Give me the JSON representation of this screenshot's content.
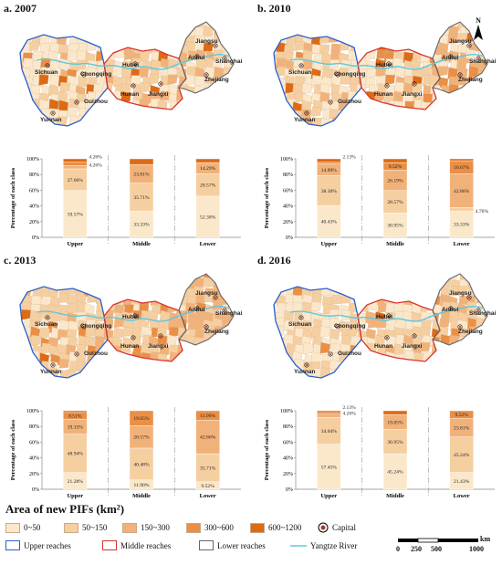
{
  "panels": [
    {
      "id": "a",
      "title": "a. 2007",
      "show_north": false,
      "chart": {
        "type": "bar",
        "stacked": true,
        "categories": [
          "Upper",
          "Middle",
          "Lower"
        ],
        "series": [
          {
            "name": "0~50",
            "values": [
              59.57,
              33.33,
              52.38
            ]
          },
          {
            "name": "50~150",
            "values": [
              27.66,
              35.71,
              28.57
            ]
          },
          {
            "name": "150~300",
            "values": [
              4.26,
              23.81,
              14.29
            ]
          },
          {
            "name": "300~600",
            "values": [
              4.26,
              0,
              0
            ]
          },
          {
            "name": "600~1200",
            "values": [
              4.26,
              7.14,
              4.76
            ]
          }
        ],
        "labels": [
          [
            "59.57%",
            "27.66%",
            "4.26%",
            "4.26%",
            "4.26%"
          ],
          [
            "33.33%",
            "35.71%",
            "23.81%",
            "",
            "7.14%"
          ],
          [
            "52.38%",
            "28.57%",
            "14.29%",
            "",
            "4.76%"
          ]
        ],
        "ylabel": "Percentage of each class",
        "yticks": [
          "0%",
          "20%",
          "40%",
          "60%",
          "80%",
          "100%"
        ],
        "ylim": [
          0,
          100
        ]
      }
    },
    {
      "id": "b",
      "title": "b. 2010",
      "show_north": true,
      "chart": {
        "type": "bar",
        "stacked": true,
        "categories": [
          "Upper",
          "Middle",
          "Lower"
        ],
        "series": [
          {
            "name": "0~50",
            "values": [
              40.43,
              30.95,
              33.33
            ]
          },
          {
            "name": "50~150",
            "values": [
              38.3,
              28.57,
              4.76
            ]
          },
          {
            "name": "150~300",
            "values": [
              14.89,
              26.19,
              42.86
            ]
          },
          {
            "name": "300~600",
            "values": [
              2.13,
              9.52,
              16.67
            ]
          },
          {
            "name": "600~1200",
            "values": [
              4.26,
              4.76,
              2.38
            ]
          }
        ],
        "labels": [
          [
            "40.43%",
            "38.30%",
            "14.89%",
            "2.13%",
            "4.26%"
          ],
          [
            "30.95%",
            "28.57%",
            "26.19%",
            "9.52%",
            "4.76%"
          ],
          [
            "33.33%",
            "4.76%",
            "42.86%",
            "16.67%",
            "2.38%"
          ]
        ],
        "ylabel": "Percentage of each class",
        "yticks": [
          "0%",
          "20%",
          "40%",
          "60%",
          "80%",
          "100%"
        ],
        "ylim": [
          0,
          100
        ]
      }
    },
    {
      "id": "c",
      "title": "c. 2013",
      "show_north": false,
      "chart": {
        "type": "bar",
        "stacked": true,
        "categories": [
          "Upper",
          "Middle",
          "Lower"
        ],
        "series": [
          {
            "name": "0~50",
            "values": [
              21.28,
              11.9,
              9.52
            ]
          },
          {
            "name": "50~150",
            "values": [
              48.94,
              40.48,
              35.71
            ]
          },
          {
            "name": "150~300",
            "values": [
              19.15,
              28.57,
              42.86
            ]
          },
          {
            "name": "300~600",
            "values": [
              8.51,
              19.05,
              11.9
            ]
          },
          {
            "name": "600~1200",
            "values": [
              2.13,
              0,
              0
            ]
          }
        ],
        "labels": [
          [
            "21.28%",
            "48.94%",
            "19.15%",
            "8.51%",
            "2.13%"
          ],
          [
            "11.90%",
            "40.48%",
            "28.57%",
            "19.05%",
            ""
          ],
          [
            "9.52%",
            "35.71%",
            "42.86%",
            "11.90%",
            ""
          ]
        ],
        "ylabel": "Percentage of each class",
        "yticks": [
          "0%",
          "20%",
          "40%",
          "60%",
          "80%",
          "100%"
        ],
        "ylim": [
          0,
          100
        ]
      }
    },
    {
      "id": "d",
      "title": "d. 2016",
      "show_north": false,
      "chart": {
        "type": "bar",
        "stacked": true,
        "categories": [
          "Upper",
          "Middle",
          "Lower"
        ],
        "series": [
          {
            "name": "0~50",
            "values": [
              57.45,
              45.24,
              21.43
            ]
          },
          {
            "name": "50~150",
            "values": [
              34.04,
              30.95,
              45.24
            ]
          },
          {
            "name": "150~300",
            "values": [
              4.26,
              19.05,
              23.81
            ]
          },
          {
            "name": "300~600",
            "values": [
              2.13,
              0,
              9.52
            ]
          },
          {
            "name": "600~1200",
            "values": [
              2.13,
              4.76,
              0
            ]
          }
        ],
        "labels": [
          [
            "57.45%",
            "34.04%",
            "4.26%",
            "2.13%",
            "2.13%"
          ],
          [
            "45.24%",
            "30.95%",
            "19.05%",
            "",
            "4.76%"
          ],
          [
            "21.43%",
            "45.24%",
            "23.81%",
            "9.52%",
            ""
          ]
        ],
        "ylabel": "Percentage of each class",
        "yticks": [
          "0%",
          "20%",
          "40%",
          "60%",
          "80%",
          "100%"
        ],
        "ylim": [
          0,
          100
        ]
      }
    }
  ],
  "map_labels": {
    "sichuan": "Sichuan",
    "chongqing": "Chongqing",
    "hubei": "Hubei",
    "anhui": "Anhui",
    "jiangsu": "Jiangsu",
    "shanghai": "Shanghai",
    "zhejiang": "Zhejiang",
    "hunan": "Hunan",
    "jiangxi": "Jiangxi",
    "guizhou": "Guizhou",
    "yunnan": "Yunnan"
  },
  "north_label": "N",
  "class_colors": {
    "0~50": "#fbe8cb",
    "50~150": "#f6cfa1",
    "150~300": "#f1b27a",
    "300~600": "#ea8f45",
    "600~1200": "#dd6a14"
  },
  "boundary_colors": {
    "upper": "#2a5fcf",
    "middle": "#d8322f",
    "lower": "#666666",
    "river": "#5ec8e0"
  },
  "legend": {
    "title": "Area of new PIFs (km²)",
    "classes": [
      "0~50",
      "50~150",
      "150~300",
      "300~600",
      "600~1200"
    ],
    "capital": "Capital",
    "upper": "Upper reaches",
    "middle": "Middle reaches",
    "lower": "Lower reaches",
    "river": "Yangtze River",
    "scale_unit": "km",
    "scale_ticks": [
      "0",
      "250",
      "500",
      "1000"
    ]
  }
}
